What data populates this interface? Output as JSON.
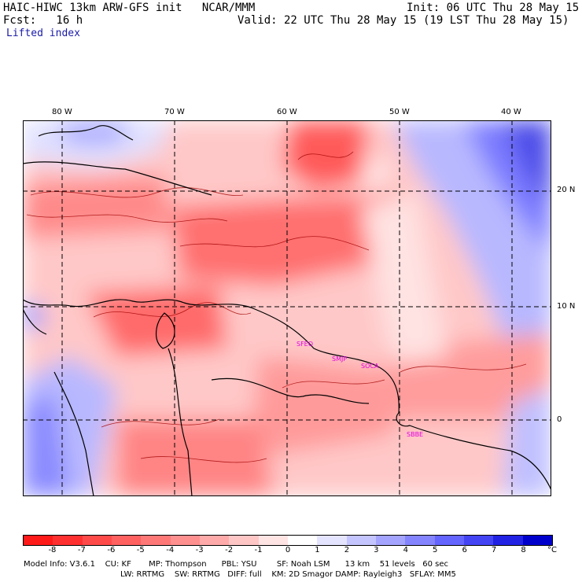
{
  "header": {
    "model": "HAIC-HIWC 13km ARW-GFS init   NCAR/MMM",
    "init": "Init: 06 UTC Thu 28 May 15",
    "fcst": "Fcst:   16 h",
    "valid": "Valid: 22 UTC Thu 28 May 15 (19 LST Thu 28 May 15)",
    "field": "Lifted index"
  },
  "map": {
    "lon_labels": [
      "80 W",
      "70 W",
      "60 W",
      "50 W",
      "40 W"
    ],
    "lat_labels": [
      "20 N",
      "10 N",
      "0"
    ],
    "stations": [
      "SFEO",
      "SMJP",
      "SOCA",
      "SBBE"
    ]
  },
  "colorbar": {
    "unit": "°C",
    "ticks": [
      "-8",
      "-7",
      "-6",
      "-5",
      "-4",
      "-3",
      "-2",
      "-1",
      "0",
      "1",
      "2",
      "3",
      "4",
      "5",
      "6",
      "7",
      "8"
    ],
    "colors": [
      "#ff1a1a",
      "#ff3030",
      "#ff4a4a",
      "#ff6060",
      "#ff7878",
      "#ff9090",
      "#ffaaaa",
      "#ffc6c6",
      "#ffe4e4",
      "#ffffff",
      "#e4e4ff",
      "#c4c4ff",
      "#a4a4ff",
      "#8484ff",
      "#6464ff",
      "#4444f4",
      "#2222e4",
      "#0000cc"
    ]
  },
  "footer": {
    "line1": "Model Info: V3.6.1    CU: KF       MP: Thompson      PBL: YSU        SF: Noah LSM      13 km    51 levels   60 sec",
    "line2": "LW: RRTMG    SW: RRTMG   DIFF: full    KM: 2D Smagor DAMP: Rayleigh3   SFLAY: MM5"
  }
}
